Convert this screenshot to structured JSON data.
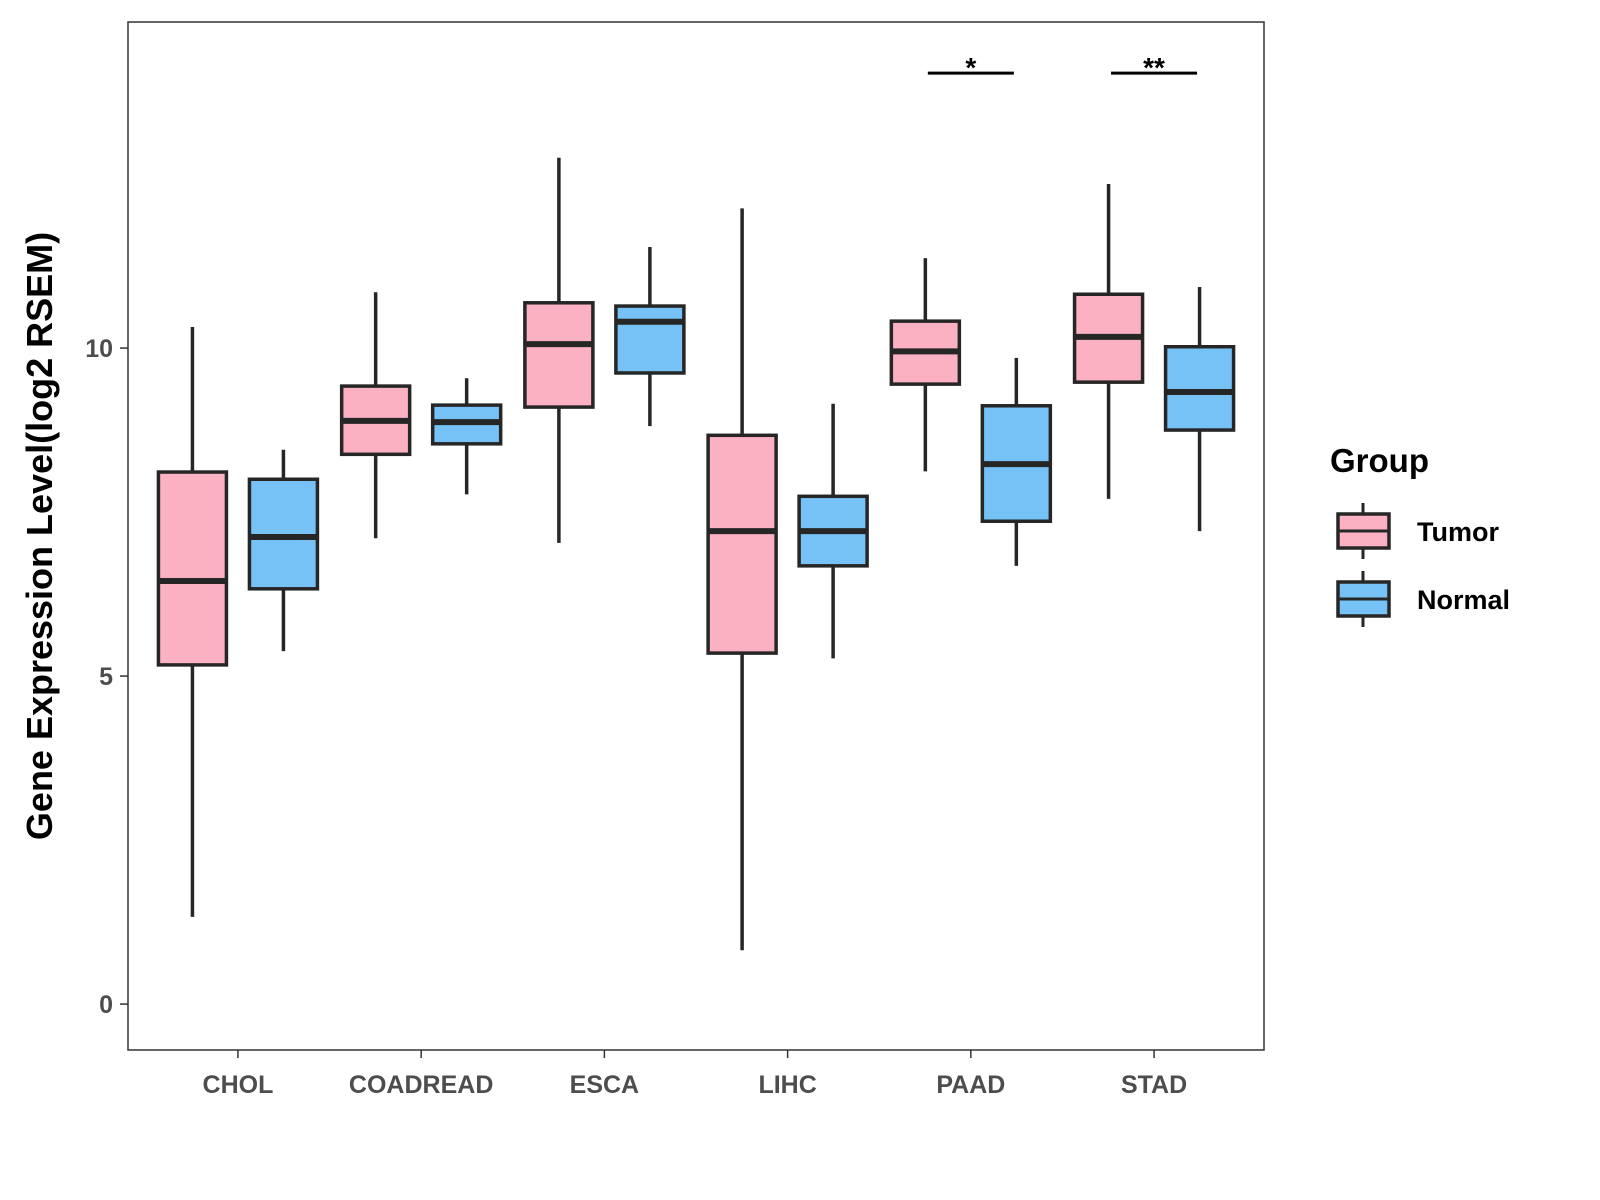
{
  "chart_data": {
    "type": "boxplot",
    "title": "",
    "xlabel": "",
    "ylabel": "Gene Expression Level(log2 RSEM)",
    "ylim": [
      -0.7,
      14.97
    ],
    "yticks": [
      0,
      5,
      10
    ],
    "grid": false,
    "categories": [
      "CHOL",
      "COADREAD",
      "ESCA",
      "LIHC",
      "PAAD",
      "STAD"
    ],
    "legend": {
      "title": "Group",
      "placement": "right"
    },
    "series": [
      {
        "name": "Tumor",
        "color": "#FBB1C2",
        "boxes": [
          {
            "min": 1.33,
            "q1": 5.17,
            "median": 6.45,
            "q3": 8.11,
            "max": 10.32
          },
          {
            "min": 7.1,
            "q1": 8.38,
            "median": 8.89,
            "q3": 9.42,
            "max": 10.85
          },
          {
            "min": 7.03,
            "q1": 9.1,
            "median": 10.06,
            "q3": 10.69,
            "max": 12.9
          },
          {
            "min": 0.82,
            "q1": 5.35,
            "median": 7.21,
            "q3": 8.67,
            "max": 12.13
          },
          {
            "min": 8.12,
            "q1": 9.45,
            "median": 9.95,
            "q3": 10.41,
            "max": 11.37
          },
          {
            "min": 7.7,
            "q1": 9.48,
            "median": 10.17,
            "q3": 10.82,
            "max": 12.5
          }
        ]
      },
      {
        "name": "Normal",
        "color": "#76C2F7",
        "boxes": [
          {
            "min": 5.38,
            "q1": 6.33,
            "median": 7.12,
            "q3": 8.0,
            "max": 8.45
          },
          {
            "min": 7.77,
            "q1": 8.54,
            "median": 8.87,
            "q3": 9.13,
            "max": 9.54
          },
          {
            "min": 8.81,
            "q1": 9.62,
            "median": 10.4,
            "q3": 10.64,
            "max": 11.54
          },
          {
            "min": 5.27,
            "q1": 6.68,
            "median": 7.21,
            "q3": 7.74,
            "max": 9.15
          },
          {
            "min": 6.68,
            "q1": 7.36,
            "median": 8.23,
            "q3": 9.12,
            "max": 9.85
          },
          {
            "min": 7.21,
            "q1": 8.75,
            "median": 9.33,
            "q3": 10.02,
            "max": 10.93
          }
        ]
      }
    ],
    "annotations": [
      {
        "category": "PAAD",
        "label": "*",
        "y": 14.19
      },
      {
        "category": "STAD",
        "label": "**",
        "y": 14.19
      }
    ]
  }
}
